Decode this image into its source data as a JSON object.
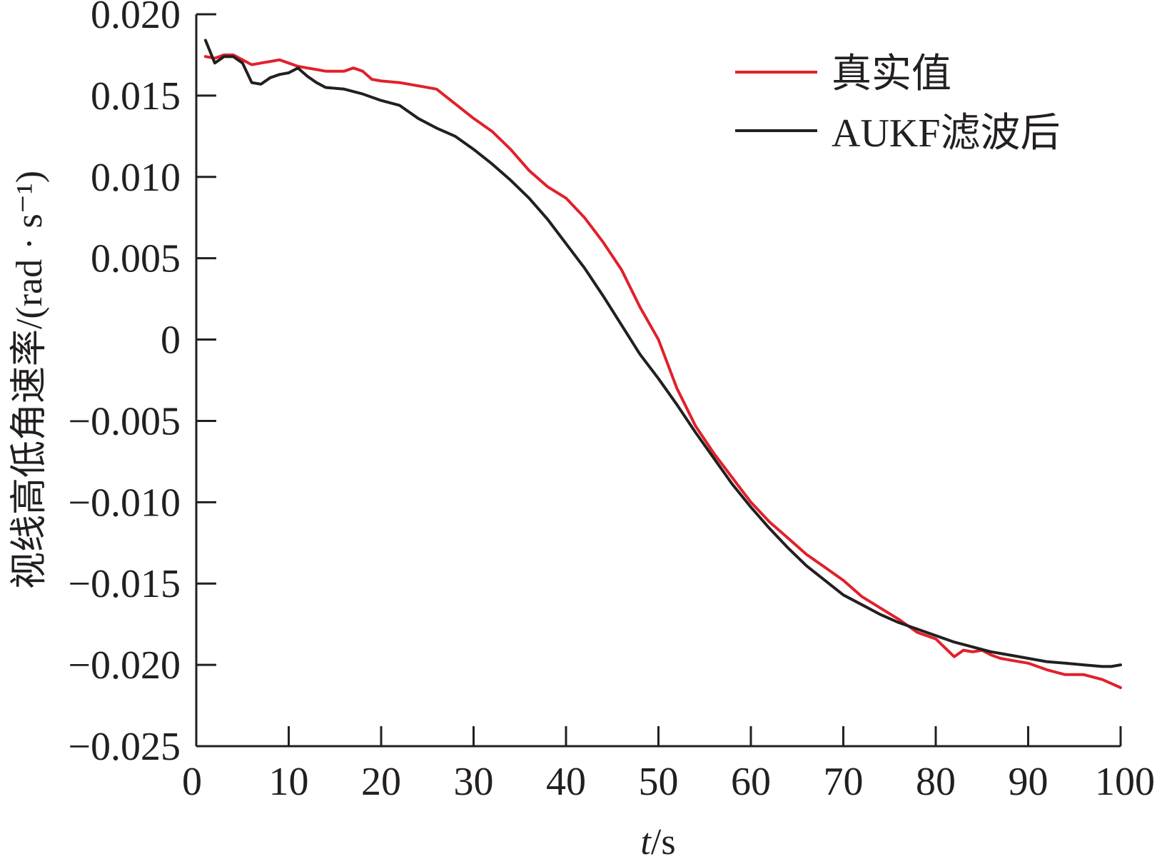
{
  "chart_data": {
    "type": "line",
    "title": "",
    "xlabel": "t/s",
    "xlabel_parts": {
      "var": "t",
      "unit": "/s"
    },
    "ylabel": "视线高低角速率/(rad · s⁻¹)",
    "xlim": [
      0,
      100
    ],
    "ylim": [
      -0.025,
      0.02
    ],
    "xticks": [
      0,
      10,
      20,
      30,
      40,
      50,
      60,
      70,
      80,
      90,
      100
    ],
    "xtick_labels": [
      "0",
      "10",
      "20",
      "30",
      "40",
      "50",
      "60",
      "70",
      "80",
      "90",
      "100"
    ],
    "yticks": [
      0.02,
      0.015,
      0.01,
      0.005,
      0,
      -0.005,
      -0.01,
      -0.015,
      -0.02,
      -0.025
    ],
    "ytick_labels": [
      "0.020",
      "0.015",
      "0.010",
      "0.005",
      "0",
      "−0.005",
      "−0.010",
      "−0.015",
      "−0.020",
      "−0.025"
    ],
    "grid": false,
    "legend_position": "top-right",
    "series": [
      {
        "name": "真实值",
        "color": "#e0212b",
        "x": [
          1,
          2,
          3,
          4,
          5,
          6,
          7,
          8,
          9,
          10,
          11,
          12,
          13,
          14,
          15,
          16,
          17,
          18,
          19,
          20,
          22,
          24,
          26,
          28,
          30,
          32,
          34,
          36,
          38,
          40,
          42,
          44,
          46,
          48,
          50,
          52,
          54,
          56,
          58,
          60,
          62,
          64,
          66,
          68,
          70,
          72,
          74,
          76,
          78,
          80,
          82,
          83,
          84,
          85,
          86,
          87,
          88,
          90,
          92,
          94,
          96,
          98,
          100
        ],
        "y": [
          0.0174,
          0.0173,
          0.0175,
          0.0175,
          0.0172,
          0.0169,
          0.017,
          0.0171,
          0.0172,
          0.017,
          0.0168,
          0.0167,
          0.0166,
          0.0165,
          0.0165,
          0.0165,
          0.0167,
          0.0165,
          0.016,
          0.0159,
          0.0158,
          0.0156,
          0.0154,
          0.0145,
          0.0136,
          0.0128,
          0.0117,
          0.0104,
          0.0094,
          0.0087,
          0.0075,
          0.006,
          0.0043,
          0.002,
          0.0,
          -0.003,
          -0.0053,
          -0.007,
          -0.0085,
          -0.01,
          -0.0112,
          -0.0122,
          -0.0132,
          -0.014,
          -0.0148,
          -0.0158,
          -0.0165,
          -0.0172,
          -0.018,
          -0.0184,
          -0.0195,
          -0.0191,
          -0.0192,
          -0.0191,
          -0.0194,
          -0.0196,
          -0.0197,
          -0.0199,
          -0.0203,
          -0.0206,
          -0.0206,
          -0.0209,
          -0.0214
        ]
      },
      {
        "name": "AUKF滤波后",
        "color": "#231f20",
        "x": [
          1,
          2,
          3,
          4,
          5,
          6,
          7,
          8,
          9,
          10,
          11,
          12,
          13,
          14,
          16,
          18,
          20,
          22,
          24,
          26,
          28,
          30,
          32,
          34,
          36,
          38,
          40,
          42,
          44,
          46,
          48,
          50,
          52,
          54,
          56,
          58,
          60,
          62,
          64,
          66,
          68,
          70,
          72,
          74,
          76,
          78,
          80,
          82,
          84,
          86,
          88,
          90,
          92,
          94,
          96,
          98,
          99,
          100
        ],
        "y": [
          0.0184,
          0.017,
          0.0174,
          0.0174,
          0.017,
          0.0158,
          0.0157,
          0.0161,
          0.0163,
          0.0164,
          0.0167,
          0.0162,
          0.0158,
          0.0155,
          0.0154,
          0.0151,
          0.0147,
          0.0144,
          0.0136,
          0.013,
          0.0125,
          0.0117,
          0.0108,
          0.0098,
          0.0087,
          0.0074,
          0.0059,
          0.0044,
          0.0027,
          0.0009,
          -0.0009,
          -0.0024,
          -0.004,
          -0.0057,
          -0.0073,
          -0.0089,
          -0.0103,
          -0.0116,
          -0.0128,
          -0.0139,
          -0.0148,
          -0.0157,
          -0.0163,
          -0.0169,
          -0.0174,
          -0.0178,
          -0.0182,
          -0.0186,
          -0.0189,
          -0.0192,
          -0.0194,
          -0.0196,
          -0.0198,
          -0.0199,
          -0.02,
          -0.0201,
          -0.0201,
          -0.02
        ]
      }
    ]
  }
}
